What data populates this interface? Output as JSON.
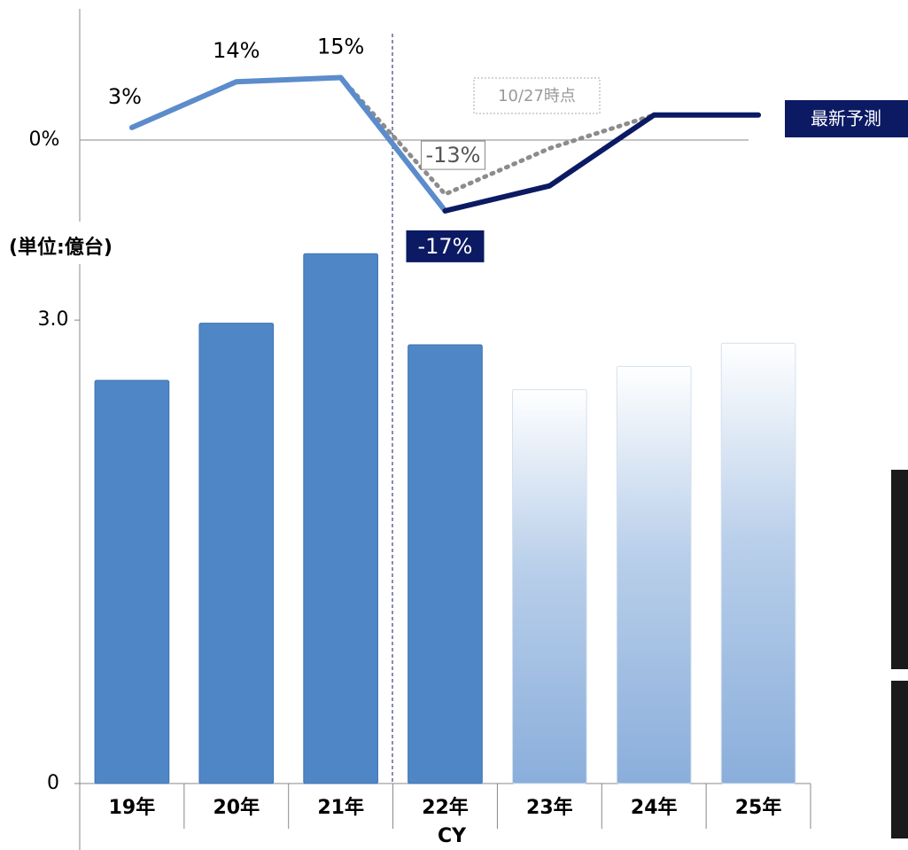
{
  "chart_data": [
    {
      "type": "bar",
      "unit_label": "(単位:億台)",
      "x_label": "CY",
      "categories": [
        "19年",
        "20年",
        "21年",
        "22年",
        "23年",
        "24年",
        "25年"
      ],
      "values": [
        2.61,
        2.98,
        3.43,
        2.84,
        2.55,
        2.7,
        2.85
      ],
      "color": "#4f86c6",
      "fill": [
        "solid",
        "solid",
        "solid",
        "solid",
        "gradient",
        "gradient",
        "gradient"
      ],
      "ylim": [
        0,
        3.5
      ],
      "yticks": [
        0,
        {
          "value": 3,
          "label": "3.0"
        }
      ]
    },
    {
      "type": "line",
      "ylim": [
        -20,
        30
      ],
      "yticks": [
        {
          "value": 0,
          "label": "0%"
        }
      ],
      "series": [
        {
          "color": "#5b8ccb",
          "style": "solid",
          "values": [
            3,
            14,
            15,
            -17,
            null,
            null,
            null
          ],
          "value_labels": [
            "3%",
            "14%",
            "15%",
            "-17%",
            null,
            null,
            null
          ]
        },
        {
          "name": "10/27時点",
          "color": "#8c8c8c",
          "style": "dotted",
          "values": [
            null,
            null,
            15,
            -13,
            -2,
            6,
            6
          ],
          "value_labels": [
            null,
            null,
            null,
            "-13%",
            null,
            null,
            null
          ]
        },
        {
          "name": "最新予測",
          "color": "#0c1a63",
          "style": "solid",
          "values": [
            null,
            null,
            null,
            -17,
            -11,
            6,
            6
          ]
        }
      ]
    }
  ]
}
